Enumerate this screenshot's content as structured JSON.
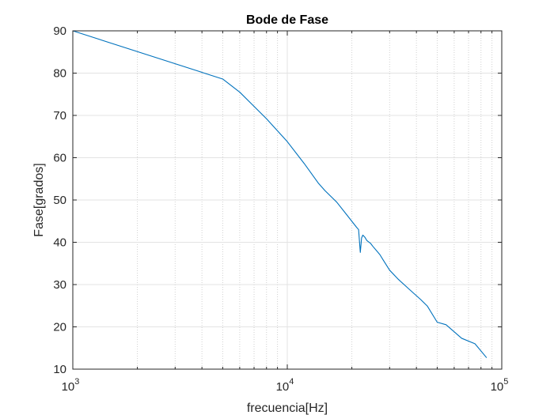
{
  "chart_data": {
    "type": "line",
    "title": "Bode de Fase",
    "xlabel": "frecuencia[Hz]",
    "ylabel": "Fase[grados]",
    "xscale": "log",
    "xlim": [
      1000,
      100000
    ],
    "ylim": [
      10,
      90
    ],
    "grid": true,
    "minor_grid": true,
    "x_ticks": [
      {
        "value": 1000,
        "base": "10",
        "exp": "3"
      },
      {
        "value": 10000,
        "base": "10",
        "exp": "4"
      },
      {
        "value": 100000,
        "base": "10",
        "exp": "5"
      }
    ],
    "y_ticks": [
      10,
      20,
      30,
      40,
      50,
      60,
      70,
      80,
      90
    ],
    "series": [
      {
        "color": "#0072BD",
        "points": [
          [
            1000,
            90.0
          ],
          [
            5000,
            78.6
          ],
          [
            6000,
            75.5
          ],
          [
            8000,
            69.2
          ],
          [
            10000,
            63.8
          ],
          [
            12000,
            58.6
          ],
          [
            14000,
            53.9
          ],
          [
            15000,
            52.2
          ],
          [
            17000,
            49.5
          ],
          [
            19000,
            46.4
          ],
          [
            21000,
            43.6
          ],
          [
            21500,
            43.0
          ],
          [
            21900,
            37.6
          ],
          [
            22200,
            41.0
          ],
          [
            22500,
            41.7
          ],
          [
            23000,
            41.2
          ],
          [
            23500,
            40.4
          ],
          [
            24500,
            39.7
          ],
          [
            25000,
            39.1
          ],
          [
            27000,
            37.1
          ],
          [
            28000,
            35.8
          ],
          [
            30000,
            33.4
          ],
          [
            33000,
            31.2
          ],
          [
            37000,
            28.9
          ],
          [
            42000,
            26.4
          ],
          [
            45000,
            24.9
          ],
          [
            50000,
            21.1
          ],
          [
            55000,
            20.5
          ],
          [
            65000,
            17.3
          ],
          [
            75000,
            16.0
          ],
          [
            85000,
            12.7
          ]
        ]
      }
    ]
  }
}
